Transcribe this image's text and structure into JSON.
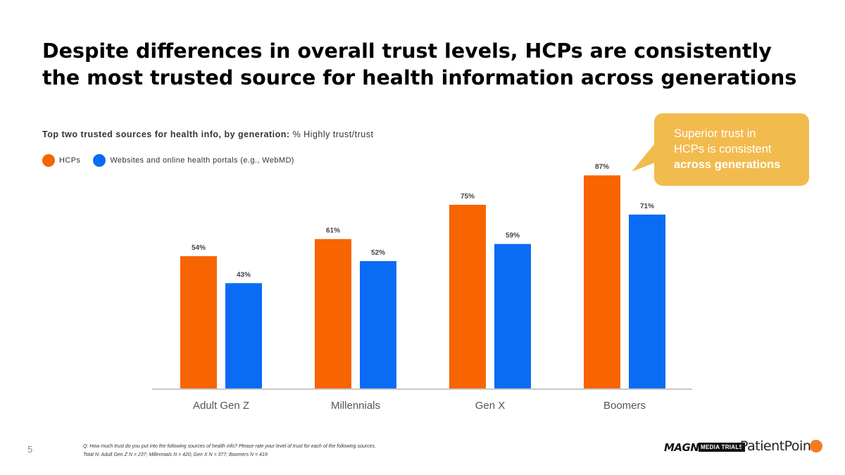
{
  "slide": {
    "title_line1": "Despite differences in overall trust levels, HCPs are consistently",
    "title_line2": "the most trusted source for health information across generations",
    "subtitle_bold": "Top two trusted sources for health info, by generation:",
    "subtitle_rest": " % Highly trust/trust",
    "page_number": "5",
    "footnote_line1": "Q: How much trust do you put into the following sources of health info? Please rate your level of trust for each of the following sources.",
    "footnote_line2": "Total N: Adult Gen Z N = 237; Millennials N = 420; Gen X N = 377; Boomers N = 419"
  },
  "callout": {
    "line1": "Superior trust in",
    "line2": "HCPs is consistent",
    "line3": "across generations",
    "color": "#f2bb4e"
  },
  "logos": {
    "magna": "MAGNA",
    "media_trials": "MEDIA TRIALS",
    "patientpoint": "PatientPoint"
  },
  "chart_data": {
    "type": "bar",
    "title": "Top two trusted sources for health info, by generation: % Highly trust/trust",
    "categories": [
      "Adult Gen Z",
      "Millennials",
      "Gen X",
      "Boomers"
    ],
    "series": [
      {
        "name": "HCPs",
        "color": "#f76400",
        "values": [
          54,
          61,
          75,
          87
        ],
        "labels": [
          "54%",
          "61%",
          "75%",
          "87%"
        ]
      },
      {
        "name": "Websites and online health portals (e.g., WebMD)",
        "color": "#0a6cf5",
        "values": [
          43,
          52,
          59,
          71
        ],
        "labels": [
          "43%",
          "52%",
          "59%",
          "71%"
        ]
      }
    ],
    "xlabel": "",
    "ylabel": "",
    "ylim": [
      0,
      100
    ],
    "grid": false,
    "legend": "top-left"
  }
}
